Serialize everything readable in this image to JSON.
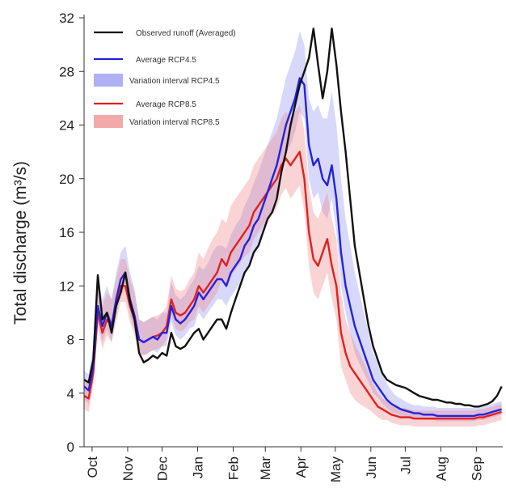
{
  "chart_data": {
    "type": "line",
    "title": "",
    "xlabel": "",
    "ylabel": "Total discharge (m³/s)",
    "ylim": [
      0,
      32
    ],
    "yticks": [
      0,
      4,
      8,
      12,
      16,
      20,
      24,
      28,
      32
    ],
    "xlim": [
      0,
      365
    ],
    "months": [
      "Oct",
      "Nov",
      "Dec",
      "Jan",
      "Feb",
      "Mar",
      "Apr",
      "May",
      "Jun",
      "Jul",
      "Aug",
      "Sep"
    ],
    "month_positions": [
      7,
      38,
      68,
      99,
      130,
      158,
      189,
      219,
      250,
      280,
      311,
      342
    ],
    "legend": [
      {
        "label": "Observed runoff (Averaged)",
        "kind": "line",
        "color": "#111111"
      },
      {
        "label": "Average RCP4.5",
        "kind": "line",
        "color": "#2222dd"
      },
      {
        "label": "Variation interval RCP4.5",
        "kind": "band",
        "color": "#8f8ff0"
      },
      {
        "label": "Average RCP8.5",
        "kind": "line",
        "color": "#e02020"
      },
      {
        "label": "Variation interval RCP8.5",
        "kind": "band",
        "color": "#f08585"
      }
    ],
    "grid": false,
    "legend_position": "top-left",
    "series": [
      {
        "name": "Observed runoff (Averaged)",
        "color": "#111111",
        "x": [
          0,
          4,
          8,
          12,
          16,
          20,
          24,
          28,
          32,
          36,
          40,
          44,
          48,
          52,
          56,
          60,
          64,
          68,
          72,
          76,
          80,
          84,
          88,
          92,
          96,
          100,
          104,
          108,
          112,
          116,
          120,
          124,
          128,
          132,
          136,
          140,
          144,
          148,
          152,
          156,
          160,
          164,
          168,
          172,
          176,
          180,
          184,
          188,
          192,
          196,
          200,
          204,
          208,
          212,
          216,
          220,
          224,
          228,
          232,
          236,
          240,
          244,
          248,
          252,
          256,
          260,
          264,
          268,
          272,
          276,
          280,
          284,
          288,
          292,
          296,
          300,
          304,
          308,
          312,
          316,
          320,
          324,
          328,
          332,
          336,
          340,
          344,
          348,
          352,
          356,
          360,
          364
        ],
        "values": [
          5.0,
          4.8,
          6.5,
          12.8,
          9.5,
          10.0,
          8.5,
          10.5,
          11.5,
          13.0,
          10.8,
          9.5,
          7.0,
          6.3,
          6.5,
          6.8,
          6.6,
          7.0,
          6.8,
          8.5,
          7.5,
          7.3,
          7.5,
          8.0,
          8.5,
          8.8,
          8.0,
          8.5,
          9.0,
          9.5,
          9.5,
          8.8,
          10.0,
          11.0,
          12.0,
          13.0,
          13.5,
          14.5,
          15.0,
          16.0,
          17.0,
          17.5,
          18.5,
          20.5,
          22.0,
          24.0,
          25.5,
          27.0,
          28.0,
          29.0,
          31.2,
          28.5,
          26.0,
          28.0,
          31.2,
          28.5,
          25.0,
          22.0,
          18.5,
          15.0,
          13.0,
          11.0,
          9.0,
          7.5,
          6.5,
          5.5,
          5.0,
          4.8,
          4.6,
          4.5,
          4.4,
          4.2,
          4.0,
          3.8,
          3.7,
          3.6,
          3.5,
          3.5,
          3.4,
          3.3,
          3.3,
          3.2,
          3.2,
          3.1,
          3.1,
          3.0,
          3.0,
          3.1,
          3.2,
          3.4,
          3.8,
          4.5
        ]
      },
      {
        "name": "Average RCP4.5",
        "color": "#2222dd",
        "x": [
          0,
          4,
          8,
          12,
          16,
          20,
          24,
          28,
          32,
          36,
          40,
          44,
          48,
          52,
          56,
          60,
          64,
          68,
          72,
          76,
          80,
          84,
          88,
          92,
          96,
          100,
          104,
          108,
          112,
          116,
          120,
          124,
          128,
          132,
          136,
          140,
          144,
          148,
          152,
          156,
          160,
          164,
          168,
          172,
          176,
          180,
          184,
          188,
          192,
          196,
          200,
          204,
          208,
          212,
          216,
          220,
          224,
          228,
          232,
          236,
          240,
          244,
          248,
          252,
          256,
          260,
          264,
          268,
          272,
          276,
          280,
          284,
          288,
          292,
          296,
          300,
          304,
          308,
          312,
          316,
          320,
          324,
          328,
          332,
          336,
          340,
          344,
          348,
          352,
          356,
          360,
          364
        ],
        "values": [
          4.5,
          4.2,
          6.0,
          10.5,
          9.0,
          10.0,
          9.0,
          11.0,
          12.5,
          13.0,
          11.0,
          9.8,
          8.0,
          7.8,
          8.0,
          8.2,
          8.0,
          8.5,
          8.5,
          10.5,
          9.5,
          9.2,
          9.5,
          10.0,
          10.5,
          11.5,
          11.0,
          11.5,
          12.0,
          12.5,
          12.5,
          12.0,
          13.0,
          13.5,
          14.0,
          15.0,
          15.5,
          16.5,
          17.0,
          18.0,
          19.0,
          20.0,
          21.0,
          22.5,
          24.0,
          25.0,
          26.0,
          27.5,
          27.0,
          22.5,
          21.0,
          21.5,
          20.0,
          19.5,
          21.0,
          18.5,
          14.5,
          12.0,
          10.5,
          9.0,
          8.0,
          7.0,
          6.0,
          5.0,
          4.5,
          4.0,
          3.5,
          3.2,
          3.0,
          2.8,
          2.7,
          2.6,
          2.5,
          2.5,
          2.4,
          2.4,
          2.4,
          2.3,
          2.3,
          2.3,
          2.3,
          2.3,
          2.3,
          2.3,
          2.3,
          2.3,
          2.4,
          2.4,
          2.5,
          2.6,
          2.7,
          2.8
        ]
      },
      {
        "name": "Average RCP8.5",
        "color": "#e02020",
        "x": [
          0,
          4,
          8,
          12,
          16,
          20,
          24,
          28,
          32,
          36,
          40,
          44,
          48,
          52,
          56,
          60,
          64,
          68,
          72,
          76,
          80,
          84,
          88,
          92,
          96,
          100,
          104,
          108,
          112,
          116,
          120,
          124,
          128,
          132,
          136,
          140,
          144,
          148,
          152,
          156,
          160,
          164,
          168,
          172,
          176,
          180,
          184,
          188,
          192,
          196,
          200,
          204,
          208,
          212,
          216,
          220,
          224,
          228,
          232,
          236,
          240,
          244,
          248,
          252,
          256,
          260,
          264,
          268,
          272,
          276,
          280,
          284,
          288,
          292,
          296,
          300,
          304,
          308,
          312,
          316,
          320,
          324,
          328,
          332,
          336,
          340,
          344,
          348,
          352,
          356,
          360,
          364
        ],
        "values": [
          3.8,
          3.6,
          5.5,
          10.0,
          8.5,
          9.5,
          9.0,
          10.5,
          12.0,
          12.0,
          10.5,
          9.5,
          8.0,
          7.8,
          8.0,
          8.2,
          8.3,
          8.5,
          9.0,
          11.0,
          10.0,
          9.8,
          10.0,
          10.5,
          11.0,
          12.0,
          11.5,
          12.0,
          12.5,
          13.0,
          14.0,
          13.5,
          14.5,
          15.0,
          15.5,
          16.0,
          16.5,
          17.5,
          18.0,
          18.5,
          19.0,
          19.5,
          20.0,
          21.0,
          21.5,
          21.0,
          21.5,
          22.0,
          20.0,
          16.0,
          14.0,
          13.5,
          14.5,
          15.5,
          13.5,
          12.0,
          8.5,
          7.0,
          6.0,
          5.5,
          5.0,
          4.5,
          4.0,
          3.5,
          3.0,
          2.8,
          2.6,
          2.4,
          2.3,
          2.2,
          2.2,
          2.2,
          2.1,
          2.1,
          2.1,
          2.1,
          2.1,
          2.1,
          2.1,
          2.1,
          2.1,
          2.1,
          2.1,
          2.1,
          2.1,
          2.1,
          2.2,
          2.2,
          2.3,
          2.4,
          2.5,
          2.6
        ]
      }
    ],
    "bands": [
      {
        "name": "Variation interval RCP4.5",
        "color": "#8f8ff0",
        "lower_delta": [
          1.0,
          1.0,
          1.0,
          1.2,
          1.2,
          1.2,
          1.2,
          1.2,
          1.2,
          1.2,
          1.2,
          1.2,
          1.0,
          1.0,
          1.0,
          1.0,
          1.0,
          1.0,
          1.0,
          1.2,
          1.2,
          1.2,
          1.2,
          1.2,
          1.5,
          1.5,
          1.5,
          1.5,
          1.5,
          1.5,
          1.5,
          1.5,
          1.8,
          1.8,
          1.8,
          1.8,
          2.0,
          2.0,
          2.0,
          2.0,
          2.0,
          2.2,
          2.2,
          2.2,
          2.2,
          2.5,
          2.5,
          2.5,
          2.5,
          2.5,
          2.5,
          2.5,
          2.5,
          2.5,
          2.5,
          2.5,
          2.5,
          2.0,
          2.0,
          2.0,
          1.8,
          1.5,
          1.2,
          1.0,
          0.8,
          0.8,
          0.6,
          0.6,
          0.5,
          0.5,
          0.5,
          0.5,
          0.4,
          0.4,
          0.4,
          0.4,
          0.4,
          0.4,
          0.4,
          0.4,
          0.4,
          0.4,
          0.4,
          0.4,
          0.4,
          0.4,
          0.4,
          0.4,
          0.4,
          0.4,
          0.4,
          0.4
        ],
        "upper_delta": [
          1.2,
          1.2,
          1.5,
          2.0,
          2.0,
          2.0,
          2.0,
          2.0,
          2.0,
          2.0,
          2.0,
          2.0,
          1.5,
          1.5,
          1.5,
          1.5,
          1.5,
          1.5,
          1.5,
          1.8,
          1.8,
          1.8,
          1.8,
          2.0,
          2.0,
          2.0,
          2.2,
          2.2,
          2.5,
          2.5,
          2.5,
          2.8,
          2.8,
          3.0,
          3.0,
          3.0,
          3.2,
          3.2,
          3.5,
          3.5,
          3.5,
          3.5,
          3.5,
          3.5,
          3.5,
          3.5,
          3.5,
          3.5,
          3.0,
          3.5,
          4.0,
          4.0,
          4.5,
          5.0,
          5.5,
          5.5,
          5.5,
          5.0,
          4.5,
          4.0,
          3.5,
          3.0,
          2.5,
          2.0,
          1.8,
          1.5,
          1.2,
          1.0,
          0.8,
          0.8,
          0.7,
          0.6,
          0.6,
          0.6,
          0.6,
          0.6,
          0.6,
          0.6,
          0.6,
          0.6,
          0.6,
          0.6,
          0.6,
          0.6,
          0.6,
          0.6,
          0.6,
          0.6,
          0.6,
          0.6,
          0.6,
          0.6
        ]
      },
      {
        "name": "Variation interval RCP8.5",
        "color": "#f08585",
        "lower_delta": [
          1.0,
          1.0,
          1.0,
          1.2,
          1.2,
          1.2,
          1.2,
          1.2,
          1.2,
          1.2,
          1.2,
          1.2,
          1.0,
          1.0,
          1.0,
          1.0,
          1.0,
          1.0,
          1.0,
          1.2,
          1.2,
          1.2,
          1.2,
          1.2,
          1.5,
          1.5,
          1.5,
          1.5,
          1.5,
          1.5,
          1.5,
          1.5,
          1.8,
          1.8,
          1.8,
          1.8,
          2.0,
          2.0,
          2.0,
          2.0,
          2.0,
          2.2,
          2.2,
          2.2,
          2.2,
          2.5,
          2.5,
          2.5,
          2.5,
          2.5,
          2.5,
          2.5,
          2.5,
          2.5,
          2.5,
          2.5,
          2.5,
          2.0,
          2.0,
          2.0,
          1.8,
          1.5,
          1.2,
          1.0,
          0.8,
          0.8,
          0.6,
          0.6,
          0.6,
          0.6,
          0.6,
          0.6,
          0.6,
          0.6,
          0.6,
          0.6,
          0.6,
          0.6,
          0.6,
          0.6,
          0.6,
          0.6,
          0.6,
          0.6,
          0.6,
          0.6,
          0.6,
          0.6,
          0.6,
          0.6,
          0.6,
          0.6
        ],
        "upper_delta": [
          1.2,
          1.2,
          1.5,
          2.0,
          2.0,
          2.0,
          2.0,
          2.0,
          2.0,
          2.0,
          2.0,
          2.0,
          1.5,
          1.5,
          1.5,
          1.5,
          1.5,
          1.5,
          1.5,
          1.8,
          1.8,
          1.8,
          1.8,
          2.0,
          2.0,
          2.5,
          2.5,
          2.8,
          3.0,
          3.0,
          3.0,
          3.2,
          3.5,
          3.5,
          3.5,
          3.5,
          3.5,
          3.5,
          3.5,
          3.5,
          3.5,
          3.5,
          3.5,
          3.5,
          3.5,
          3.5,
          3.5,
          3.5,
          3.5,
          3.5,
          3.5,
          3.5,
          3.5,
          3.5,
          3.5,
          3.5,
          3.0,
          2.5,
          2.5,
          2.2,
          2.0,
          1.8,
          1.5,
          1.2,
          1.0,
          0.8,
          0.8,
          0.8,
          0.7,
          0.7,
          0.7,
          0.6,
          0.6,
          0.6,
          0.6,
          0.6,
          0.6,
          0.6,
          0.6,
          0.6,
          0.6,
          0.6,
          0.6,
          0.6,
          0.6,
          0.6,
          0.6,
          0.6,
          0.6,
          0.6,
          0.6,
          0.6
        ]
      }
    ]
  }
}
